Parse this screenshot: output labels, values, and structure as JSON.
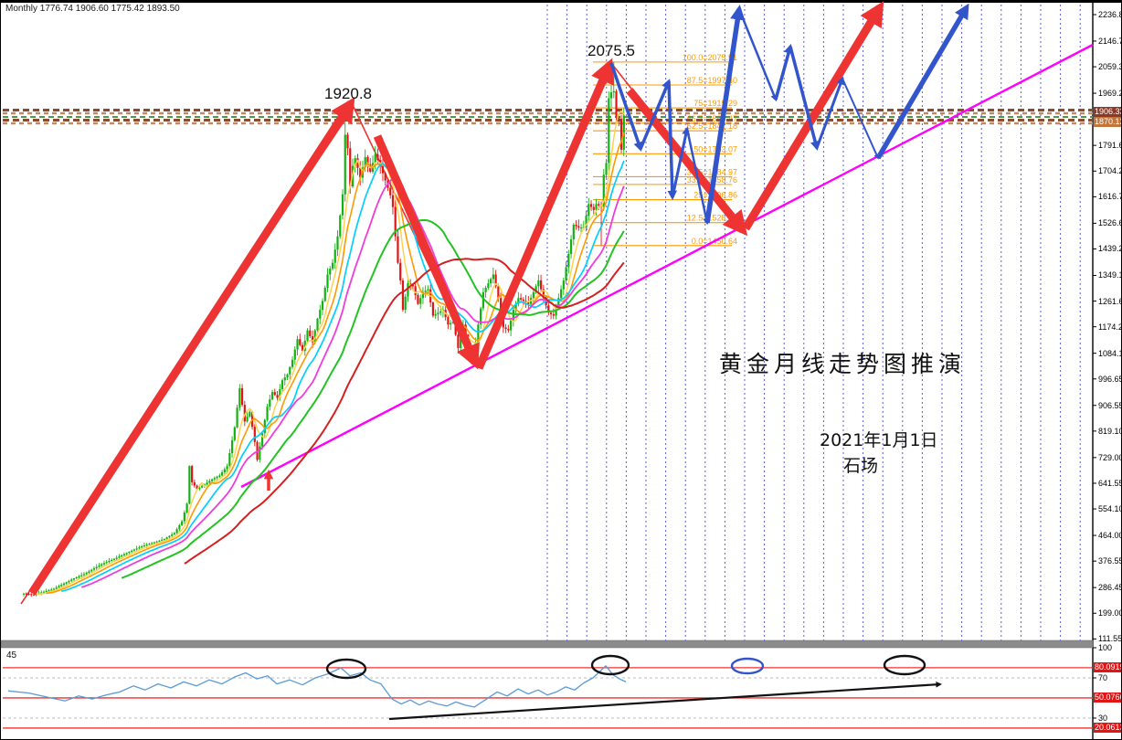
{
  "header": {
    "ohlc": "Monthly  1776.74 1906.60 1775.42 1893.50"
  },
  "annotations": {
    "peak_left": "1920.8",
    "peak_right": "2075.5",
    "title": "黄金月线走势图推演",
    "date": "2021年1月1日",
    "author": "石场"
  },
  "colors": {
    "grid": "#5b5be0",
    "fib": "#ff9900",
    "band_dark": "#8a4a33",
    "band_light": "#c08a60",
    "band_green": "#4c9a4c",
    "bull": "#12b212",
    "bear": "#e01616",
    "projection_red": "#ee3333",
    "projection_blue": "#3355cc",
    "trend_magenta": "#ff00ff",
    "rsi_line": "#5b9bd5",
    "level_red": "#f03030",
    "level_gray": "#bbbbbb",
    "separator": "#8c8c8c",
    "axis_border": "#000000"
  },
  "axis": {
    "main_ticks": [
      2236.85,
      2146.75,
      2059.3,
      1969.2,
      1791.65,
      1704.2,
      1616.75,
      1526.65,
      1439.2,
      1349.1,
      1261.65,
      1174.2,
      1084.1,
      996.65,
      906.55,
      819.1,
      729.0,
      641.55,
      554.1,
      464.0,
      376.55,
      286.45,
      199.0,
      111.55
    ],
    "price_tags": [
      {
        "label": "1906.33",
        "value": 1906.33,
        "bg": "#8b3a2a"
      },
      {
        "label": "1870.12",
        "value": 1870.12,
        "bg": "#c1763b"
      }
    ]
  },
  "indicator": {
    "period_label": "45",
    "plain_ticks": [
      {
        "label": "100",
        "v": 100
      },
      {
        "label": "70",
        "v": 70
      },
      {
        "label": "30",
        "v": 30
      }
    ],
    "tag_levels": [
      {
        "label": "80.0919",
        "v": 80.0919
      },
      {
        "label": "50.0766",
        "v": 50.0766
      },
      {
        "label": "20.0613",
        "v": 20.0613
      }
    ],
    "dashed_levels": [
      70,
      30
    ],
    "tag_bg": "#e01616"
  },
  "chart_data": {
    "type": "candlestick",
    "title": "黄金月线走势图推演 (Gold monthly projection)",
    "timeframe": "Monthly",
    "ohlc_current": {
      "open": 1776.74,
      "high": 1906.6,
      "low": 1775.42,
      "close": 1893.5
    },
    "ylim": [
      111.55,
      2236.85
    ],
    "key_points": {
      "peak_2011": 1920.8,
      "low_2015": 1046.0,
      "peak_2020": 2075.5,
      "last_close": 1893.5
    },
    "price_anchors": [
      [
        0,
        266
      ],
      [
        4,
        262
      ],
      [
        8,
        272
      ],
      [
        12,
        282
      ],
      [
        16,
        300
      ],
      [
        20,
        318
      ],
      [
        24,
        332
      ],
      [
        28,
        352
      ],
      [
        32,
        370
      ],
      [
        36,
        384
      ],
      [
        40,
        400
      ],
      [
        44,
        416
      ],
      [
        48,
        430
      ],
      [
        52,
        440
      ],
      [
        56,
        452
      ],
      [
        60,
        472
      ],
      [
        63,
        512
      ],
      [
        65,
        572
      ],
      [
        66,
        700
      ],
      [
        67,
        645
      ],
      [
        69,
        622
      ],
      [
        72,
        638
      ],
      [
        75,
        655
      ],
      [
        78,
        668
      ],
      [
        81,
        700
      ],
      [
        84,
        832
      ],
      [
        86,
        965
      ],
      [
        88,
        852
      ],
      [
        90,
        885
      ],
      [
        92,
        782
      ],
      [
        93,
        722
      ],
      [
        95,
        812
      ],
      [
        97,
        902
      ],
      [
        99,
        952
      ],
      [
        101,
        932
      ],
      [
        103,
        992
      ],
      [
        105,
        1012
      ],
      [
        107,
        1062
      ],
      [
        109,
        1132
      ],
      [
        111,
        1092
      ],
      [
        113,
        1162
      ],
      [
        115,
        1122
      ],
      [
        117,
        1202
      ],
      [
        119,
        1262
      ],
      [
        121,
        1352
      ],
      [
        123,
        1392
      ],
      [
        125,
        1482
      ],
      [
        127,
        1625
      ],
      [
        128,
        1828
      ],
      [
        129,
        1782
      ],
      [
        130,
        1652
      ],
      [
        131,
        1722
      ],
      [
        132,
        1748
      ],
      [
        134,
        1682
      ],
      [
        136,
        1752
      ],
      [
        138,
        1702
      ],
      [
        140,
        1762
      ],
      [
        142,
        1722
      ],
      [
        144,
        1672
      ],
      [
        146,
        1622
      ],
      [
        147,
        1582
      ],
      [
        148,
        1482
      ],
      [
        149,
        1392
      ],
      [
        150,
        1332
      ],
      [
        151,
        1232
      ],
      [
        153,
        1322
      ],
      [
        155,
        1312
      ],
      [
        157,
        1252
      ],
      [
        159,
        1292
      ],
      [
        161,
        1302
      ],
      [
        163,
        1212
      ],
      [
        165,
        1222
      ],
      [
        167,
        1232
      ],
      [
        169,
        1182
      ],
      [
        171,
        1192
      ],
      [
        173,
        1102
      ],
      [
        175,
        1182
      ],
      [
        177,
        1112
      ],
      [
        179,
        1062
      ],
      [
        181,
        1182
      ],
      [
        183,
        1292
      ],
      [
        185,
        1322
      ],
      [
        187,
        1352
      ],
      [
        189,
        1272
      ],
      [
        191,
        1172
      ],
      [
        193,
        1162
      ],
      [
        195,
        1232
      ],
      [
        197,
        1272
      ],
      [
        199,
        1262
      ],
      [
        201,
        1252
      ],
      [
        203,
        1292
      ],
      [
        205,
        1332
      ],
      [
        207,
        1272
      ],
      [
        209,
        1222
      ],
      [
        211,
        1212
      ],
      [
        213,
        1272
      ],
      [
        215,
        1332
      ],
      [
        217,
        1422
      ],
      [
        219,
        1522
      ],
      [
        221,
        1512
      ],
      [
        223,
        1512
      ],
      [
        225,
        1592
      ],
      [
        227,
        1572
      ],
      [
        228,
        1592
      ],
      [
        230,
        1582
      ],
      [
        231,
        1692
      ],
      [
        232,
        1732
      ],
      [
        233,
        1952
      ],
      [
        234,
        1972
      ],
      [
        235,
        1976
      ],
      [
        236,
        1892
      ],
      [
        237,
        1882
      ],
      [
        238,
        1777
      ],
      [
        239,
        1893.5
      ]
    ],
    "wick_overrides": {
      "128": {
        "high": 1920.8
      },
      "235": {
        "high": 2075.5
      },
      "179": {
        "low": 1046
      },
      "230": {
        "low": 1451
      }
    },
    "first_open": 265,
    "months": 240,
    "moving_averages": [
      {
        "period": 6,
        "color": "#ffd24d",
        "width": 1.5
      },
      {
        "period": 10,
        "color": "#ff9900",
        "width": 1.6
      },
      {
        "period": 16,
        "color": "#00cfff",
        "width": 1.7
      },
      {
        "period": 24,
        "color": "#ee3ddd",
        "width": 1.8
      },
      {
        "period": 40,
        "color": "#22c322",
        "width": 2.0
      },
      {
        "period": 65,
        "color": "#d42020",
        "width": 2.0
      }
    ],
    "fibonacci": [
      {
        "pct": "100.0",
        "price": "2075.51",
        "p": 2075.51
      },
      {
        "pct": "87.5",
        "price": "1997.40",
        "p": 1997.4
      },
      {
        "pct": "75",
        "price": "1919.29",
        "p": 1919.29
      },
      {
        "pct": "66.7",
        "price": "1867.47",
        "p": 1867.47
      },
      {
        "pct": "62.5",
        "price": "1841.18",
        "p": 1841.18
      },
      {
        "pct": "50",
        "price": "1763.07",
        "p": 1763.07
      },
      {
        "pct": "37.5",
        "price": "1684.97",
        "p": 1684.97
      },
      {
        "pct": "33.3",
        "price": "1658.76",
        "p": 1658.76
      },
      {
        "pct": "25",
        "price": "1606.86",
        "p": 1606.86
      },
      {
        "pct": "12.5",
        "price": "1528.75",
        "p": 1528.75
      },
      {
        "pct": "0.0",
        "price": "1450.64",
        "p": 1450.64
      }
    ],
    "band_lines": [
      {
        "y": 119.5,
        "color": "#8a4a33",
        "w": 3,
        "dash": "7 4"
      },
      {
        "y": 123,
        "color": "#c08a60",
        "w": 2.5,
        "dash": "5 4"
      },
      {
        "y": 127,
        "color": "#4c9a4c",
        "w": 2,
        "dash": "6 4"
      },
      {
        "y": 130.5,
        "color": "#8a4a33",
        "w": 3,
        "dash": "7 4"
      },
      {
        "y": 134,
        "color": "#c08a60",
        "w": 2.5,
        "dash": "5 4"
      }
    ],
    "gridline_x": {
      "start": 598,
      "step": 21.6,
      "end": 1192
    },
    "trendline_magenta": {
      "from": [
        263,
        532
      ],
      "to": [
        1195,
        48
      ]
    },
    "red_thin_polylines": [
      [
        [
          22,
          660
        ],
        [
          386,
          116
        ],
        [
          520,
          398
        ]
      ],
      [
        [
          668,
          68
        ],
        [
          810,
          249
        ]
      ]
    ],
    "red_arrows": [
      {
        "from": [
          34,
          648
        ],
        "to": [
          383,
          112
        ]
      },
      {
        "from": [
          412,
          148
        ],
        "to": [
          519,
          396
        ]
      },
      {
        "from": [
          523,
          402
        ],
        "to": [
          666,
          70
        ]
      },
      {
        "from": [
          688,
          98
        ],
        "to": [
          812,
          251
        ]
      },
      {
        "from": [
          815,
          249
        ],
        "to": [
          962,
          7
        ]
      }
    ],
    "red_small_arrow": {
      "from": [
        293,
        536
      ],
      "to": [
        293,
        516
      ]
    },
    "blue_segments": [
      {
        "from": [
          668,
          68
        ],
        "to": [
          700,
          162
        ],
        "w": 3.5
      },
      {
        "from": [
          700,
          162
        ],
        "to": [
          731,
          88
        ],
        "w": 3.5
      },
      {
        "from": [
          731,
          88
        ],
        "to": [
          735,
          215
        ],
        "w": 3.5
      },
      {
        "from": [
          735,
          215
        ],
        "to": [
          751,
          140
        ],
        "w": 3.0
      },
      {
        "from": [
          751,
          140
        ],
        "to": [
          773,
          243
        ],
        "w": 2.5
      },
      {
        "from": [
          773,
          243
        ],
        "to": [
          808,
          9
        ],
        "w": 5.5
      },
      {
        "from": [
          808,
          9
        ],
        "to": [
          848,
          108
        ],
        "w": 2.5
      },
      {
        "from": [
          848,
          108
        ],
        "to": [
          864,
          50
        ],
        "w": 3.5
      },
      {
        "from": [
          864,
          50
        ],
        "to": [
          893,
          161
        ],
        "w": 3.5
      },
      {
        "from": [
          893,
          161
        ],
        "to": [
          921,
          85
        ],
        "w": 3.0
      },
      {
        "from": [
          921,
          85
        ],
        "to": [
          960,
          172
        ],
        "w": 2.0
      },
      {
        "from": [
          960,
          172
        ],
        "to": [
          1057,
          7
        ],
        "w": 5.5
      }
    ],
    "rsi": {
      "anchors": [
        [
          8,
          57
        ],
        [
          30,
          55
        ],
        [
          55,
          50
        ],
        [
          70,
          47
        ],
        [
          85,
          52
        ],
        [
          100,
          49
        ],
        [
          115,
          53
        ],
        [
          130,
          56
        ],
        [
          145,
          62
        ],
        [
          158,
          58
        ],
        [
          172,
          64
        ],
        [
          186,
          60
        ],
        [
          200,
          66
        ],
        [
          214,
          62
        ],
        [
          228,
          68
        ],
        [
          242,
          64
        ],
        [
          256,
          71
        ],
        [
          268,
          75
        ],
        [
          280,
          69
        ],
        [
          292,
          72
        ],
        [
          302,
          64
        ],
        [
          316,
          68
        ],
        [
          330,
          63
        ],
        [
          344,
          70
        ],
        [
          358,
          74
        ],
        [
          372,
          80
        ],
        [
          382,
          72
        ],
        [
          394,
          75
        ],
        [
          404,
          68
        ],
        [
          416,
          64
        ],
        [
          428,
          49
        ],
        [
          438,
          44
        ],
        [
          448,
          48
        ],
        [
          458,
          43
        ],
        [
          468,
          47
        ],
        [
          478,
          44
        ],
        [
          488,
          42
        ],
        [
          498,
          46
        ],
        [
          508,
          43
        ],
        [
          518,
          41
        ],
        [
          530,
          48
        ],
        [
          543,
          56
        ],
        [
          554,
          52
        ],
        [
          566,
          59
        ],
        [
          577,
          54
        ],
        [
          588,
          58
        ],
        [
          598,
          53
        ],
        [
          608,
          56
        ],
        [
          618,
          61
        ],
        [
          628,
          58
        ],
        [
          638,
          65
        ],
        [
          648,
          70
        ],
        [
          655,
          76
        ],
        [
          662,
          82
        ],
        [
          670,
          73
        ],
        [
          677,
          69
        ],
        [
          684,
          66
        ]
      ],
      "ellipses": [
        {
          "x": 378,
          "y": 731,
          "rx": 21,
          "ry": 10,
          "color": "#111111"
        },
        {
          "x": 667,
          "y": 727,
          "rx": 20,
          "ry": 10,
          "color": "#111111"
        },
        {
          "x": 817,
          "y": 728,
          "rx": 17,
          "ry": 8,
          "color": "#3355cc"
        },
        {
          "x": 989,
          "y": 727,
          "rx": 22,
          "ry": 10,
          "color": "#111111"
        }
      ],
      "trend_arrow": {
        "from": [
          425,
          786
        ],
        "to": [
          1028,
          748
        ]
      }
    }
  }
}
